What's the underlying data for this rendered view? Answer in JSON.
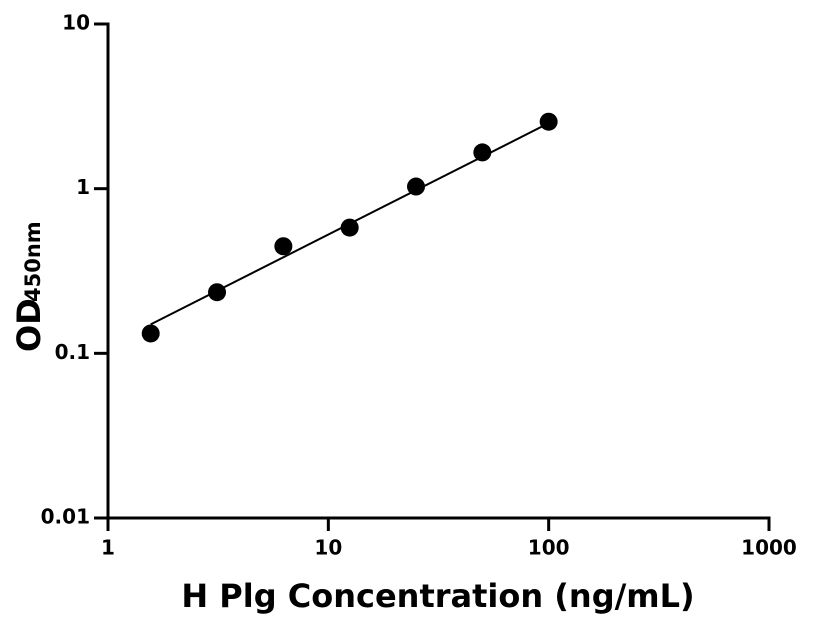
{
  "chart_data": {
    "type": "scatter",
    "xlabel": "H Plg Concentration (ng/mL)",
    "ylabel": "OD",
    "ylabel_sub": "450nm",
    "x": [
      1.5625,
      3.125,
      6.25,
      12.5,
      25,
      50,
      100
    ],
    "values": [
      0.132,
      0.235,
      0.447,
      0.58,
      1.03,
      1.66,
      2.55
    ],
    "color": "#000000",
    "fit": {
      "x": [
        1.5625,
        100
      ],
      "values": [
        0.15,
        2.5
      ]
    },
    "xlim": [
      1,
      1000
    ],
    "xticks": [
      1,
      10,
      100,
      1000
    ],
    "ylim": [
      0.01,
      10
    ],
    "yticks": [
      0.01,
      0.1,
      1,
      10
    ],
    "xlog": true,
    "ylog": true,
    "grid": false
  }
}
